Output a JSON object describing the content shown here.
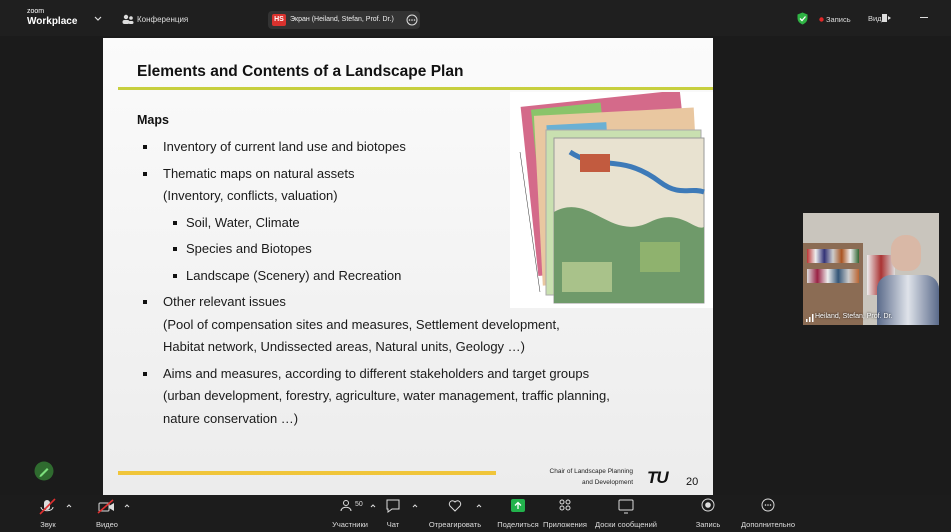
{
  "top_bar": {
    "brand_small": "zoom",
    "brand": "Workplace",
    "meeting": "Конференция",
    "share_badge": "HS",
    "share_label": "Экран (Heiland, Stefan, Prof. Dr.)",
    "recording": "Запись",
    "view": "Вид"
  },
  "slide": {
    "title": "Elements and Contents of a Landscape Plan",
    "section": "Maps",
    "items": [
      {
        "level": 1,
        "lines": [
          "Inventory of current land use and biotopes"
        ]
      },
      {
        "level": 1,
        "lines": [
          "Thematic maps on natural assets",
          "(Inventory, conflicts, valuation)"
        ]
      },
      {
        "level": 2,
        "lines": [
          "Soil, Water, Climate"
        ]
      },
      {
        "level": 2,
        "lines": [
          "Species and Biotopes"
        ]
      },
      {
        "level": 2,
        "lines": [
          "Landscape (Scenery) and Recreation"
        ]
      },
      {
        "level": 1,
        "lines": [
          "Other relevant issues",
          "(Pool of compensation sites and measures, Settlement development,",
          "Habitat network, Undissected areas, Natural units, Geology …)"
        ]
      },
      {
        "level": 1,
        "lines": [
          "Aims and measures, according to different stakeholders and target groups",
          "(urban development, forestry, agriculture, water management, traffic planning,",
          "nature conservation …)"
        ]
      }
    ],
    "footer": {
      "chair_line1": "Chair of Landscape Planning",
      "chair_line2": "and Development",
      "logo": "TU",
      "page": 20
    }
  },
  "video": {
    "name": "Heiland, Stefan, Prof. Dr."
  },
  "toolbar": {
    "participants_count": 50,
    "buttons": [
      "Звук",
      "Видео",
      "Участники",
      "Чат",
      "Отреагировать",
      "Поделиться",
      "Приложения",
      "Доски сообщений",
      "Запись",
      "Дополнительно"
    ]
  }
}
